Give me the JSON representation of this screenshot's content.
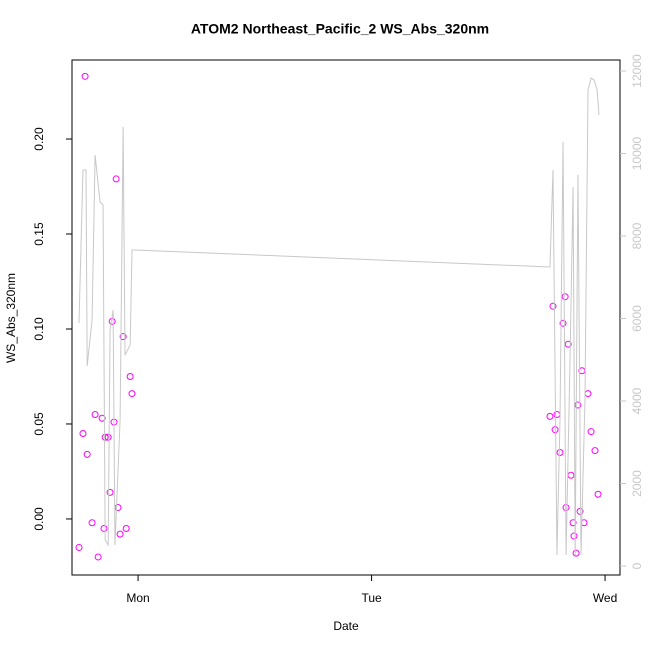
{
  "chart_data": {
    "type": "scatter",
    "title": "ATOM2 Northeast_Pacific_2 WS_Abs_320nm",
    "x_label": "Date",
    "y_label": "WS_Abs_320nm",
    "xlim": [
      0.717,
      3.064
    ],
    "xticks": [
      {
        "value": 1,
        "label": "Mon"
      },
      {
        "value": 2,
        "label": "Tue"
      },
      {
        "value": 3,
        "label": "Wed"
      }
    ],
    "ylim": [
      -0.0295,
      0.2416
    ],
    "yticks": [
      {
        "value": 0,
        "label": "0.00"
      },
      {
        "value": 0.05,
        "label": "0.05"
      },
      {
        "value": 0.1,
        "label": "0.10"
      },
      {
        "value": 0.15,
        "label": "0.15"
      },
      {
        "value": 0.2,
        "label": "0.20"
      }
    ],
    "y2lim": [
      -218,
      12267
    ],
    "y2ticks": [
      0,
      2000,
      4000,
      6000,
      8000,
      10000,
      12000
    ],
    "series": [
      {
        "type": "scatter",
        "color": "#ff00ff",
        "x": [
          0.747,
          0.773,
          0.764,
          0.782,
          0.803,
          0.816,
          0.829,
          0.846,
          0.854,
          0.859,
          0.872,
          0.88,
          0.889,
          0.897,
          0.906,
          0.914,
          0.923,
          0.936,
          0.949,
          0.966,
          0.974,
          2.764,
          2.777,
          2.786,
          2.794,
          2.807,
          2.82,
          2.829,
          2.833,
          2.842,
          2.854,
          2.863,
          2.867,
          2.876,
          2.884,
          2.893,
          2.901,
          2.91,
          2.927,
          2.94,
          2.957,
          2.97
        ],
        "values": [
          -0.015,
          0.233,
          0.045,
          0.034,
          -0.002,
          0.055,
          -0.02,
          0.053,
          -0.005,
          0.043,
          0.043,
          0.014,
          0.104,
          0.051,
          0.179,
          0.006,
          -0.008,
          0.096,
          -0.005,
          0.075,
          0.066,
          0.054,
          0.112,
          0.047,
          0.055,
          0.035,
          0.103,
          0.117,
          0.006,
          0.092,
          0.023,
          -0.002,
          -0.009,
          -0.018,
          0.06,
          0.004,
          0.078,
          -0.002,
          0.066,
          0.046,
          0.036,
          0.013
        ]
      },
      {
        "type": "line",
        "axis": "y2",
        "color": "#c8c8c8",
        "x": [
          0.747,
          0.764,
          0.777,
          0.782,
          0.803,
          0.816,
          0.837,
          0.85,
          0.859,
          0.872,
          0.88,
          0.893,
          0.901,
          0.923,
          0.936,
          0.944,
          0.966,
          0.974,
          0.987,
          2.764,
          2.777,
          2.794,
          2.807,
          2.82,
          2.833,
          2.85,
          2.863,
          2.872,
          2.884,
          2.897,
          2.914,
          2.927,
          2.94,
          2.953,
          2.966,
          2.974
        ],
        "values": [
          5891,
          9600,
          9600,
          4848,
          5964,
          9964,
          8824,
          8752,
          630,
          509,
          5721,
          6206,
          509,
          3539,
          10642,
          5115,
          5358,
          7661,
          7661,
          7248,
          9600,
          267,
          3539,
          10279,
          267,
          4994,
          9188,
          267,
          9479,
          267,
          4024,
          11539,
          11830,
          11782,
          11539,
          10933
        ]
      }
    ]
  }
}
